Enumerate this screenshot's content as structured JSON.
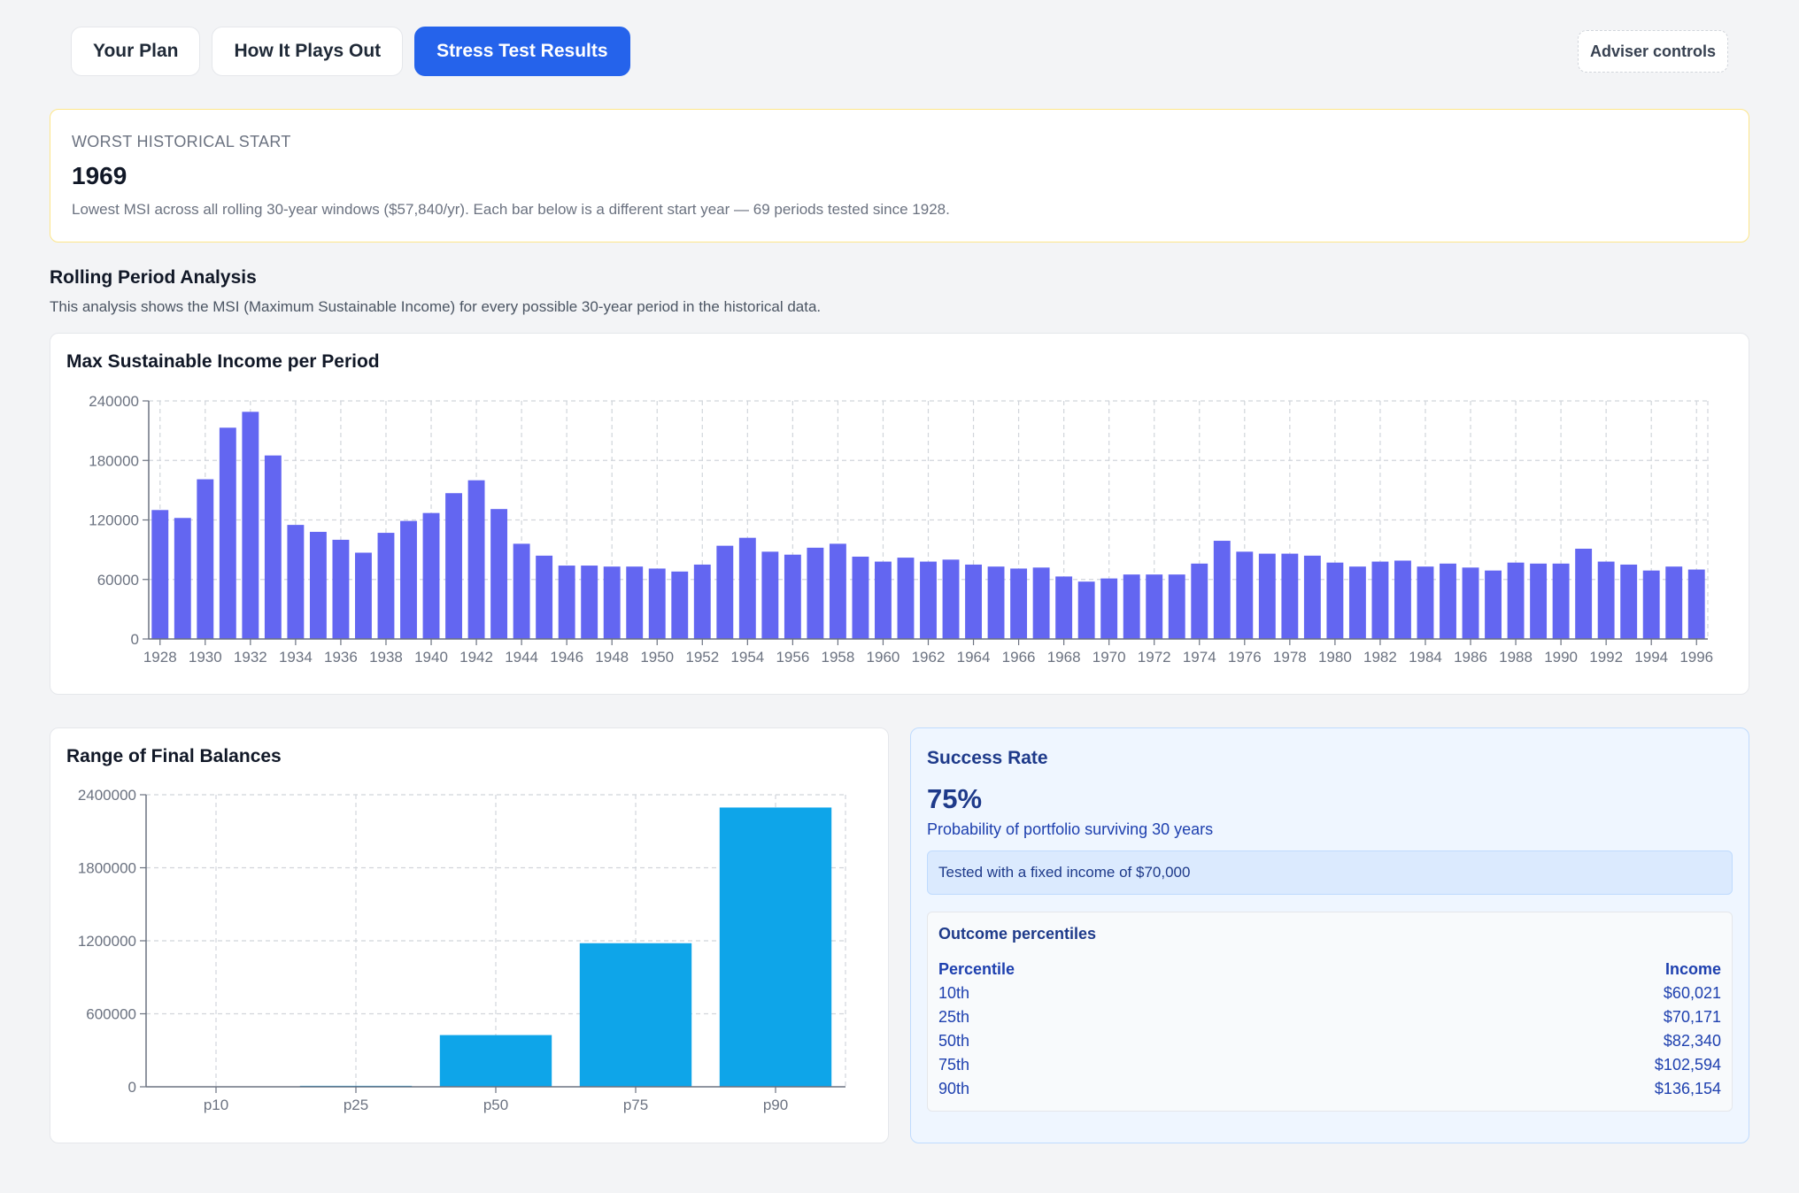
{
  "tabs": [
    {
      "label": "Your Plan",
      "active": false
    },
    {
      "label": "How It Plays Out",
      "active": false
    },
    {
      "label": "Stress Test Results",
      "active": true
    }
  ],
  "adviser_controls_label": "Adviser controls",
  "worst_start": {
    "label": "WORST HISTORICAL START",
    "year": "1969",
    "description": "Lowest MSI across all rolling 30-year windows ($57,840/yr). Each bar below is a different start year — 69 periods tested since 1928."
  },
  "rolling": {
    "title": "Rolling Period Analysis",
    "description": "This analysis shows the MSI (Maximum Sustainable Income) for every possible 30-year period in the historical data."
  },
  "colors": {
    "accent": "#2563eb",
    "msi_bar": "#6366f1",
    "balance_bar": "#0ea5e9",
    "warning_border": "#fde68a",
    "success_bg": "#eff6ff"
  },
  "chart_data": [
    {
      "type": "bar",
      "title": "Max Sustainable Income per Period",
      "xlabel": "",
      "ylabel": "",
      "ylim": [
        0,
        240000
      ],
      "yticks": [
        0,
        60000,
        120000,
        180000,
        240000
      ],
      "grid": true,
      "x_tick_labels": [
        "1928",
        "1930",
        "1932",
        "1934",
        "1936",
        "1938",
        "1940",
        "1942",
        "1944",
        "1946",
        "1948",
        "1950",
        "1952",
        "1954",
        "1956",
        "1958",
        "1960",
        "1962",
        "1964",
        "1966",
        "1968",
        "1970",
        "1972",
        "1974",
        "1976",
        "1978",
        "1980",
        "1982",
        "1984",
        "1986",
        "1988",
        "1990",
        "1992",
        "1994",
        "1996"
      ],
      "categories": [
        "1928",
        "1929",
        "1930",
        "1931",
        "1932",
        "1933",
        "1934",
        "1935",
        "1936",
        "1937",
        "1938",
        "1939",
        "1940",
        "1941",
        "1942",
        "1943",
        "1944",
        "1945",
        "1946",
        "1947",
        "1948",
        "1949",
        "1950",
        "1951",
        "1952",
        "1953",
        "1954",
        "1955",
        "1956",
        "1957",
        "1958",
        "1959",
        "1960",
        "1961",
        "1962",
        "1963",
        "1964",
        "1965",
        "1966",
        "1967",
        "1968",
        "1969",
        "1970",
        "1971",
        "1972",
        "1973",
        "1974",
        "1975",
        "1976",
        "1977",
        "1978",
        "1979",
        "1980",
        "1981",
        "1982",
        "1983",
        "1984",
        "1985",
        "1986",
        "1987",
        "1988",
        "1989",
        "1990",
        "1991",
        "1992",
        "1993",
        "1994",
        "1995",
        "1996"
      ],
      "values": [
        130000,
        122000,
        161000,
        213000,
        229000,
        185000,
        115000,
        108000,
        100000,
        87000,
        107000,
        119000,
        127000,
        147000,
        160000,
        131000,
        96000,
        84000,
        74000,
        74000,
        73000,
        73000,
        71000,
        68000,
        75000,
        94000,
        102000,
        88000,
        85000,
        92000,
        96000,
        83000,
        78000,
        82000,
        78000,
        80000,
        75000,
        73000,
        71000,
        72000,
        63000,
        57840,
        61000,
        65000,
        65000,
        65000,
        76000,
        99000,
        88000,
        86000,
        86000,
        84000,
        77000,
        73000,
        78000,
        79000,
        73000,
        76000,
        72000,
        69000,
        77000,
        76000,
        76000,
        91000,
        78000,
        75000,
        69000,
        73000,
        70000
      ]
    },
    {
      "type": "bar",
      "title": "Range of Final Balances",
      "xlabel": "",
      "ylabel": "",
      "ylim": [
        0,
        2400000
      ],
      "yticks": [
        0,
        600000,
        1200000,
        1800000,
        2400000
      ],
      "grid": true,
      "categories": [
        "p10",
        "p25",
        "p50",
        "p75",
        "p90"
      ],
      "values": [
        0,
        8000,
        425000,
        1180000,
        2295000
      ]
    }
  ],
  "success": {
    "title": "Success Rate",
    "rate": "75%",
    "subtitle": "Probability of portfolio surviving 30 years",
    "fixed_note": "Tested with a fixed income of $70,000",
    "percentiles_title": "Outcome percentiles",
    "table_headers": [
      "Percentile",
      "Income"
    ],
    "rows": [
      {
        "percentile": "10th",
        "income": "$60,021"
      },
      {
        "percentile": "25th",
        "income": "$70,171"
      },
      {
        "percentile": "50th",
        "income": "$82,340"
      },
      {
        "percentile": "75th",
        "income": "$102,594"
      },
      {
        "percentile": "90th",
        "income": "$136,154"
      }
    ]
  }
}
